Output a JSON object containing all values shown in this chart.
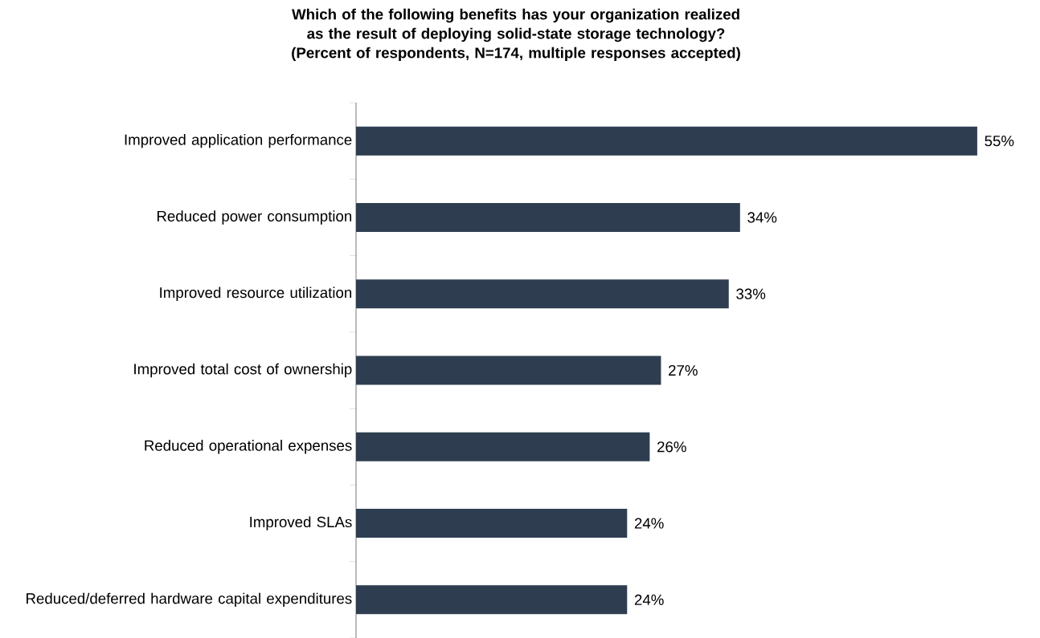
{
  "chart_data": {
    "type": "bar",
    "orientation": "horizontal",
    "title": "Which of the following benefits has your organization realized as the result of deploying solid-state storage technology? (Percent of respondents, N=174, multiple responses accepted)",
    "categories": [
      "Improved application performance",
      "Reduced power consumption",
      "Improved resource utilization",
      "Improved total cost of ownership",
      "Reduced operational expenses",
      "Improved SLAs",
      "Reduced/deferred hardware capital expenditures"
    ],
    "values": [
      55,
      34,
      33,
      27,
      26,
      24,
      24
    ],
    "value_labels": [
      "55%",
      "34%",
      "33%",
      "27%",
      "26%",
      "24%",
      "24%"
    ],
    "color": "#2e3e50"
  }
}
